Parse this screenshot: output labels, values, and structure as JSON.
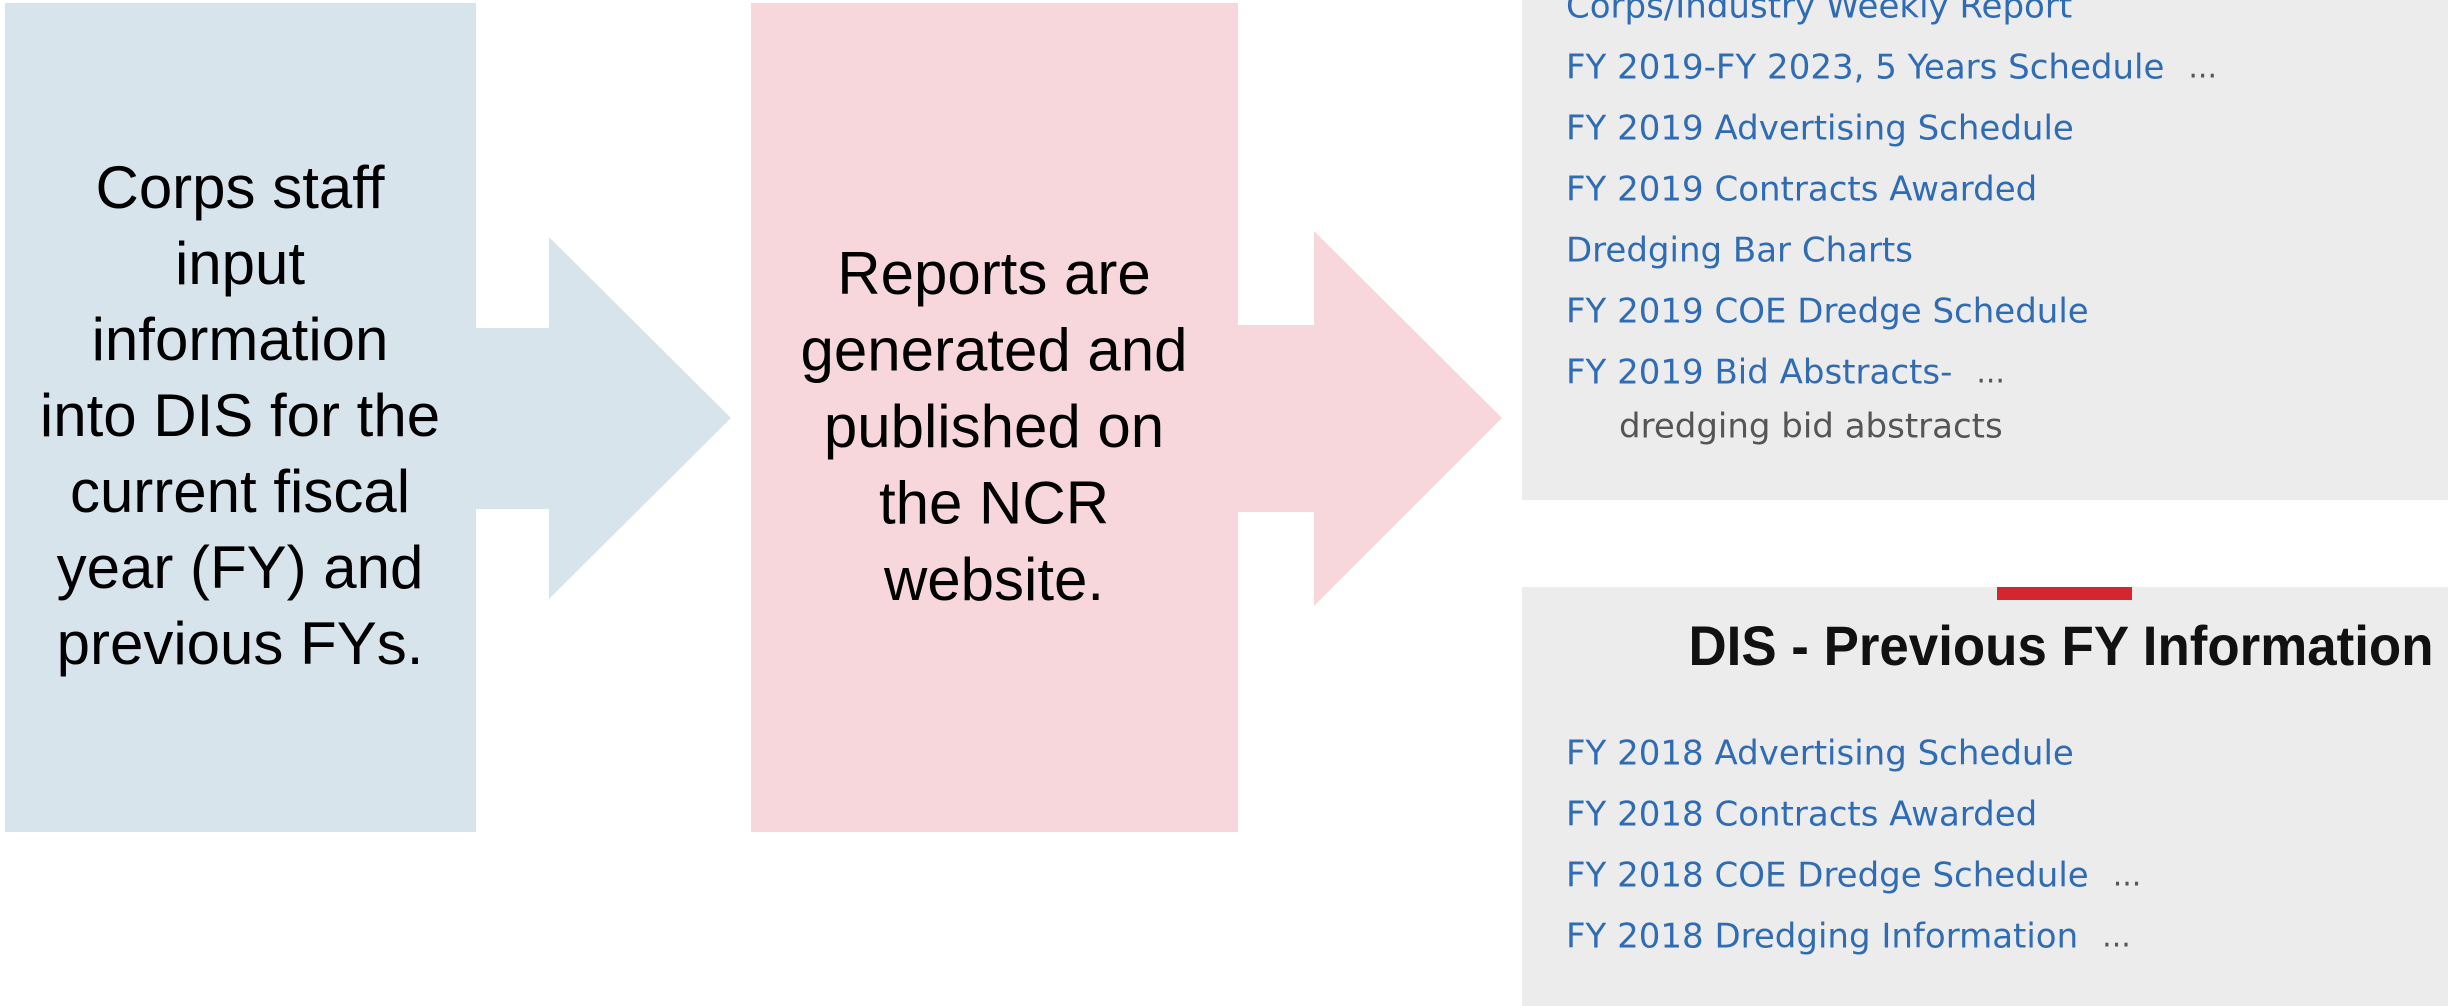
{
  "left_box": {
    "lines": [
      "Corps staff",
      "input",
      "information",
      "into DIS for the",
      "current fiscal",
      "year (FY) and",
      "previous FYs."
    ]
  },
  "middle_box": {
    "lines": [
      "Reports are",
      "generated and",
      "published on",
      "the NCR",
      "website."
    ]
  },
  "panel_current": {
    "links": [
      {
        "text": "Corps/Industry Weekly Report"
      },
      {
        "text": "FY 2019-FY 2023, 5 Years Schedule",
        "more": "..."
      },
      {
        "text": "FY 2019 Advertising Schedule"
      },
      {
        "text": "FY 2019 Contracts Awarded"
      },
      {
        "text": "Dredging Bar Charts"
      },
      {
        "text": "FY 2019 COE Dredge Schedule"
      },
      {
        "text": "FY 2019 Bid Abstracts-",
        "more": "..."
      }
    ],
    "description": "dredging bid abstracts"
  },
  "panel_previous": {
    "title": "DIS - Previous FY Information",
    "links": [
      {
        "text": "FY 2018 Advertising Schedule"
      },
      {
        "text": "FY 2018 Contracts Awarded"
      },
      {
        "text": "FY 2018 COE Dredge Schedule",
        "more": "..."
      },
      {
        "text": "FY 2018 Dredging Information",
        "more": "..."
      }
    ]
  }
}
